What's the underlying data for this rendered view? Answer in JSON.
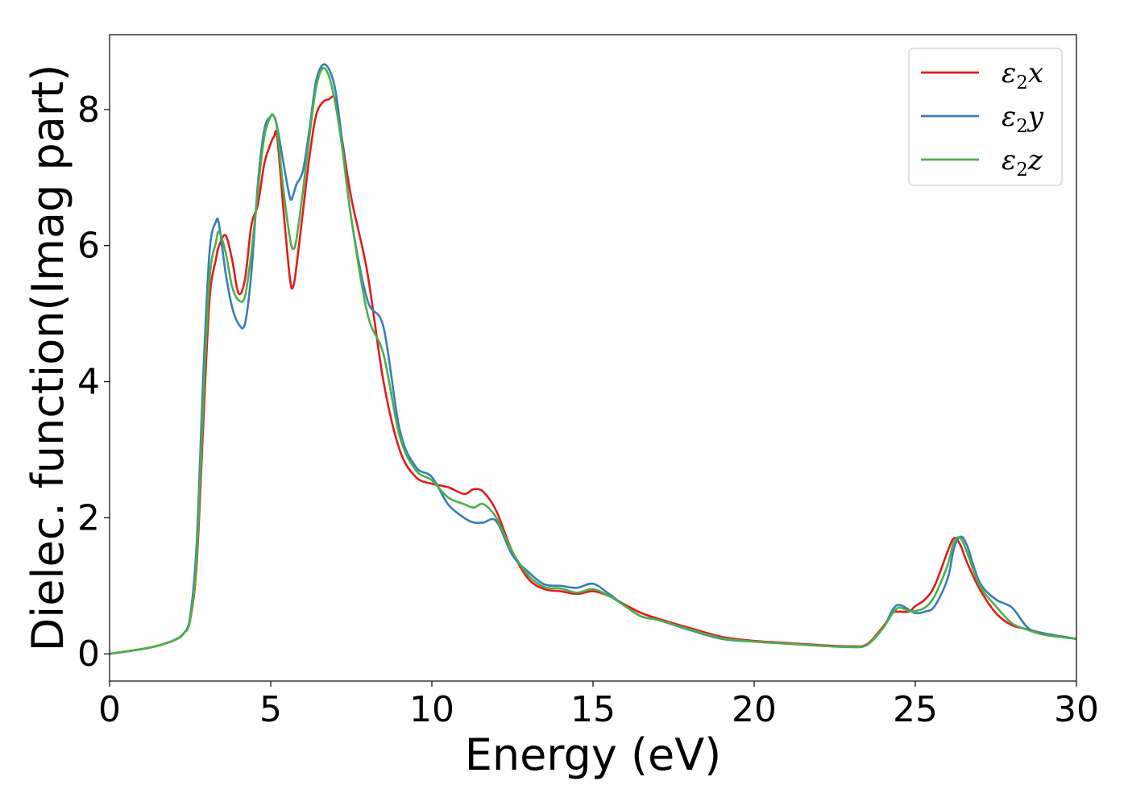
{
  "chart_data": {
    "type": "line",
    "title": "",
    "xlabel": "Energy (eV)",
    "ylabel": "Dielec. function(Imag part)",
    "xlim": [
      0,
      30
    ],
    "ylim": [
      -0.4,
      9.1
    ],
    "xticks": [
      0,
      5,
      10,
      15,
      20,
      25,
      30
    ],
    "yticks": [
      0,
      2,
      4,
      6,
      8
    ],
    "grid": false,
    "legend_position": "top-right",
    "x": [
      0,
      1,
      1.5,
      2,
      2.3,
      2.5,
      2.7,
      2.9,
      3.1,
      3.3,
      3.4,
      3.6,
      3.8,
      4.0,
      4.2,
      4.4,
      4.6,
      4.8,
      5.0,
      5.1,
      5.2,
      5.4,
      5.6,
      5.7,
      5.8,
      6.0,
      6.2,
      6.4,
      6.6,
      6.8,
      7.0,
      7.2,
      7.5,
      8.0,
      8.5,
      9.0,
      9.5,
      10.0,
      10.5,
      11.0,
      11.3,
      11.6,
      12.0,
      12.5,
      13.0,
      13.5,
      14.0,
      14.5,
      15.0,
      15.5,
      16.0,
      16.5,
      17.0,
      18.0,
      19.0,
      20.0,
      21.0,
      22.0,
      23.0,
      23.5,
      24.0,
      24.3,
      24.5,
      24.8,
      25.0,
      25.3,
      25.6,
      26.0,
      26.2,
      26.4,
      26.6,
      27.0,
      27.5,
      28.0,
      28.5,
      29.0,
      30.0
    ],
    "series": [
      {
        "name": "ε₂x",
        "name_base": "ε",
        "name_sub": "2",
        "name_suffix": "x",
        "color": "#e41a1c",
        "values": [
          0,
          0.07,
          0.12,
          0.2,
          0.3,
          0.5,
          1.3,
          3.3,
          5.2,
          5.8,
          6.0,
          6.15,
          5.8,
          5.3,
          5.5,
          6.3,
          6.6,
          7.2,
          7.5,
          7.6,
          7.6,
          6.5,
          5.5,
          5.4,
          5.7,
          6.5,
          7.3,
          7.9,
          8.1,
          8.15,
          8.15,
          7.6,
          6.7,
          5.6,
          4.0,
          3.0,
          2.6,
          2.5,
          2.45,
          2.35,
          2.42,
          2.38,
          2.1,
          1.5,
          1.1,
          0.95,
          0.92,
          0.88,
          0.92,
          0.85,
          0.72,
          0.6,
          0.52,
          0.38,
          0.25,
          0.19,
          0.16,
          0.13,
          0.11,
          0.14,
          0.4,
          0.6,
          0.62,
          0.62,
          0.7,
          0.8,
          1.0,
          1.5,
          1.7,
          1.6,
          1.35,
          0.95,
          0.6,
          0.42,
          0.36,
          0.3,
          0.22
        ]
      },
      {
        "name": "ε₂y",
        "name_base": "ε",
        "name_sub": "2",
        "name_suffix": "y",
        "color": "#377eb8",
        "values": [
          0,
          0.07,
          0.12,
          0.2,
          0.3,
          0.55,
          1.6,
          4.0,
          5.9,
          6.35,
          6.3,
          5.6,
          5.1,
          4.85,
          4.85,
          5.6,
          6.9,
          7.7,
          7.9,
          7.9,
          7.75,
          7.2,
          6.7,
          6.75,
          6.9,
          7.1,
          7.7,
          8.4,
          8.65,
          8.6,
          8.3,
          7.6,
          6.4,
          5.2,
          4.8,
          3.3,
          2.75,
          2.6,
          2.2,
          2.0,
          1.93,
          1.93,
          1.95,
          1.45,
          1.2,
          1.02,
          1.0,
          0.97,
          1.03,
          0.88,
          0.7,
          0.55,
          0.5,
          0.35,
          0.22,
          0.18,
          0.15,
          0.12,
          0.1,
          0.13,
          0.38,
          0.65,
          0.72,
          0.65,
          0.6,
          0.62,
          0.7,
          1.1,
          1.55,
          1.72,
          1.6,
          1.05,
          0.8,
          0.68,
          0.38,
          0.3,
          0.22
        ]
      },
      {
        "name": "ε₂z",
        "name_base": "ε",
        "name_sub": "2",
        "name_suffix": "z",
        "color": "#4daf4a",
        "values": [
          0,
          0.07,
          0.12,
          0.2,
          0.3,
          0.5,
          1.4,
          3.6,
          5.5,
          6.05,
          6.2,
          5.9,
          5.4,
          5.2,
          5.25,
          5.9,
          6.8,
          7.6,
          7.9,
          7.9,
          7.7,
          6.8,
          6.1,
          5.95,
          6.1,
          6.8,
          7.6,
          8.3,
          8.6,
          8.5,
          8.1,
          7.5,
          6.4,
          5.0,
          4.4,
          3.2,
          2.7,
          2.55,
          2.3,
          2.2,
          2.15,
          2.2,
          2.0,
          1.5,
          1.15,
          0.98,
          0.96,
          0.9,
          0.95,
          0.85,
          0.7,
          0.55,
          0.5,
          0.36,
          0.23,
          0.18,
          0.15,
          0.12,
          0.1,
          0.13,
          0.38,
          0.6,
          0.68,
          0.63,
          0.63,
          0.68,
          0.85,
          1.3,
          1.65,
          1.7,
          1.5,
          1.0,
          0.7,
          0.45,
          0.35,
          0.28,
          0.22
        ]
      }
    ]
  }
}
